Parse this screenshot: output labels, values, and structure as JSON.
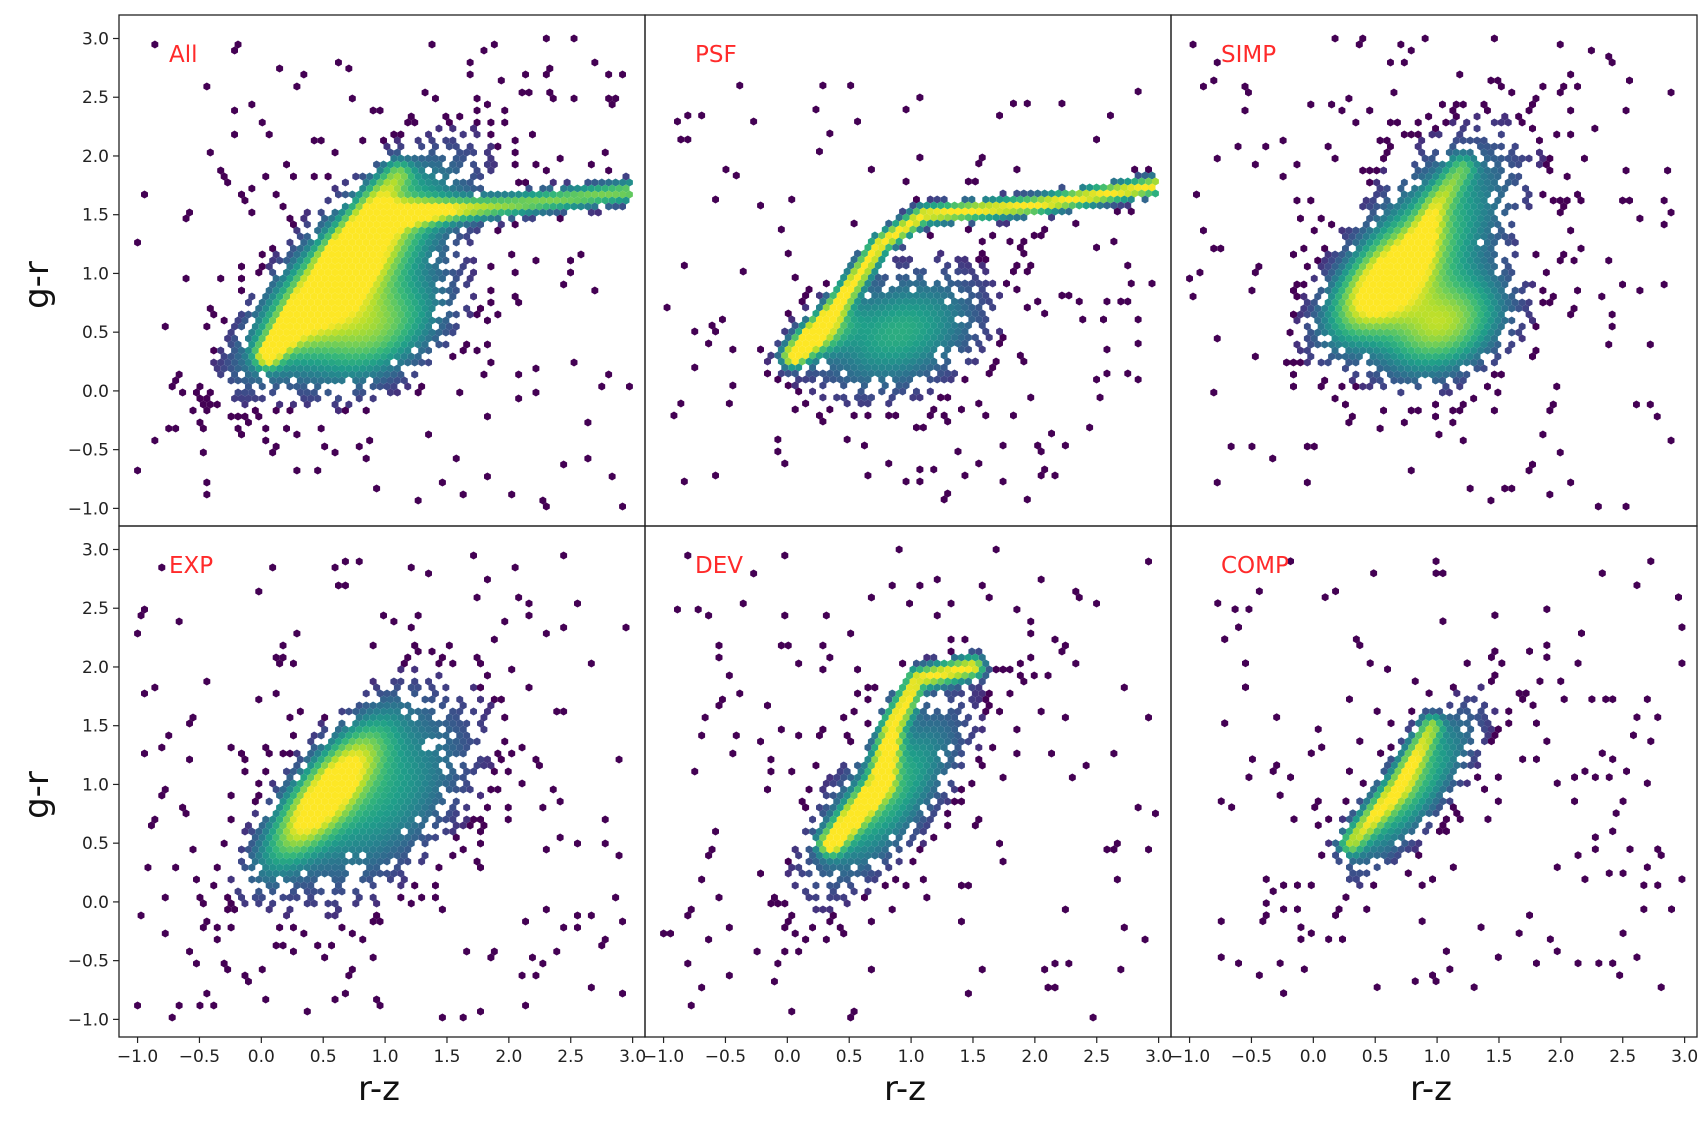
{
  "chart_data": {
    "type": "heatmap",
    "subtype": "hexbin color-color density grid (2 rows x 3 columns, shared axes)",
    "xlabel": "r-z",
    "ylabel": "g-r",
    "xlim": [
      -1.15,
      3.1
    ],
    "ylim": [
      -1.15,
      3.2
    ],
    "xticks": [
      -1.0,
      -0.5,
      0.0,
      0.5,
      1.0,
      1.5,
      2.0,
      2.5,
      3.0
    ],
    "xtick_labels": [
      "−1.0",
      "−0.5",
      "0.0",
      "0.5",
      "1.0",
      "1.5",
      "2.0",
      "2.5",
      "3.0"
    ],
    "yticks": [
      -1.0,
      -0.5,
      0.0,
      0.5,
      1.0,
      1.5,
      2.0,
      2.5,
      3.0
    ],
    "ytick_labels": [
      "−1.0",
      "−0.5",
      "0.0",
      "0.5",
      "1.0",
      "1.5",
      "2.0",
      "2.5",
      "3.0"
    ],
    "colormap": "viridis",
    "label_color": "#ff2a2a",
    "grid": false,
    "panels": [
      {
        "label": "All",
        "density": [
          {
            "type": "gauss",
            "cx": 0.55,
            "cy": 0.9,
            "sx": 0.42,
            "sy": 0.45,
            "rho": 0.8,
            "w": 1.0
          },
          {
            "type": "gauss",
            "cx": 0.9,
            "cy": 0.5,
            "sx": 0.4,
            "sy": 0.32,
            "rho": 0.4,
            "w": 0.7
          },
          {
            "type": "gauss",
            "cx": 1.0,
            "cy": 1.3,
            "sx": 0.5,
            "sy": 0.5,
            "rho": 0.6,
            "w": 0.45
          },
          {
            "type": "line",
            "pts": [
              [
                0.05,
                0.3
              ],
              [
                0.35,
                0.7
              ],
              [
                0.75,
                1.25
              ],
              [
                1.1,
                1.5
              ],
              [
                2.0,
                1.58
              ],
              [
                3.0,
                1.7
              ]
            ],
            "width": 0.07,
            "w": 0.75
          },
          {
            "type": "line",
            "pts": [
              [
                0.6,
                1.1
              ],
              [
                0.9,
                1.6
              ],
              [
                1.1,
                1.85
              ]
            ],
            "width": 0.09,
            "w": 0.5
          }
        ],
        "extent": {
          "x": [
            -1.0,
            3.0
          ],
          "y": [
            -1.0,
            3.0
          ]
        }
      },
      {
        "label": "PSF",
        "density": [
          {
            "type": "gauss",
            "cx": 0.9,
            "cy": 0.5,
            "sx": 0.45,
            "sy": 0.35,
            "rho": 0.3,
            "w": 0.55
          },
          {
            "type": "line",
            "pts": [
              [
                0.05,
                0.3
              ],
              [
                0.35,
                0.65
              ],
              [
                0.75,
                1.25
              ],
              [
                1.1,
                1.5
              ],
              [
                2.0,
                1.58
              ],
              [
                3.0,
                1.75
              ]
            ],
            "width": 0.06,
            "w": 1.0
          },
          {
            "type": "gauss",
            "cx": 0.25,
            "cy": 0.45,
            "sx": 0.18,
            "sy": 0.15,
            "rho": 0.6,
            "w": 0.6
          }
        ],
        "extent": {
          "x": [
            -1.0,
            3.0
          ],
          "y": [
            -0.95,
            2.6
          ]
        }
      },
      {
        "label": "SIMP",
        "density": [
          {
            "type": "gauss",
            "cx": 0.55,
            "cy": 0.9,
            "sx": 0.3,
            "sy": 0.32,
            "rho": 0.6,
            "w": 1.0
          },
          {
            "type": "gauss",
            "cx": 1.05,
            "cy": 0.55,
            "sx": 0.35,
            "sy": 0.3,
            "rho": 0.3,
            "w": 0.8
          },
          {
            "type": "gauss",
            "cx": 1.0,
            "cy": 1.4,
            "sx": 0.45,
            "sy": 0.5,
            "rho": 0.5,
            "w": 0.5
          },
          {
            "type": "line",
            "pts": [
              [
                0.8,
                1.1
              ],
              [
                1.0,
                1.6
              ],
              [
                1.2,
                1.9
              ]
            ],
            "width": 0.08,
            "w": 0.4
          }
        ],
        "extent": {
          "x": [
            -1.0,
            3.0
          ],
          "y": [
            -1.0,
            3.0
          ]
        }
      },
      {
        "label": "EXP",
        "density": [
          {
            "type": "gauss",
            "cx": 0.5,
            "cy": 0.9,
            "sx": 0.32,
            "sy": 0.4,
            "rho": 0.8,
            "w": 1.0
          },
          {
            "type": "gauss",
            "cx": 0.95,
            "cy": 0.9,
            "sx": 0.5,
            "sy": 0.55,
            "rho": 0.5,
            "w": 0.5
          }
        ],
        "extent": {
          "x": [
            -1.0,
            3.0
          ],
          "y": [
            -1.0,
            3.0
          ]
        }
      },
      {
        "label": "DEV",
        "density": [
          {
            "type": "gauss",
            "cx": 0.8,
            "cy": 0.9,
            "sx": 0.4,
            "sy": 0.5,
            "rho": 0.7,
            "w": 0.6
          },
          {
            "type": "line",
            "pts": [
              [
                0.35,
                0.5
              ],
              [
                0.75,
                1.0
              ],
              [
                0.85,
                1.5
              ],
              [
                1.05,
                1.9
              ],
              [
                1.5,
                2.0
              ]
            ],
            "width": 0.07,
            "w": 0.95
          }
        ],
        "extent": {
          "x": [
            -1.0,
            3.0
          ],
          "y": [
            -1.0,
            3.0
          ]
        }
      },
      {
        "label": "COMP",
        "density": [
          {
            "type": "gauss",
            "cx": 0.8,
            "cy": 0.95,
            "sx": 0.35,
            "sy": 0.45,
            "rho": 0.8,
            "w": 0.6
          },
          {
            "type": "line",
            "pts": [
              [
                0.3,
                0.5
              ],
              [
                0.7,
                1.0
              ],
              [
                0.95,
                1.5
              ]
            ],
            "width": 0.07,
            "w": 0.65
          }
        ],
        "extent": {
          "x": [
            -0.8,
            3.0
          ],
          "y": [
            -0.8,
            2.9
          ]
        }
      }
    ]
  }
}
